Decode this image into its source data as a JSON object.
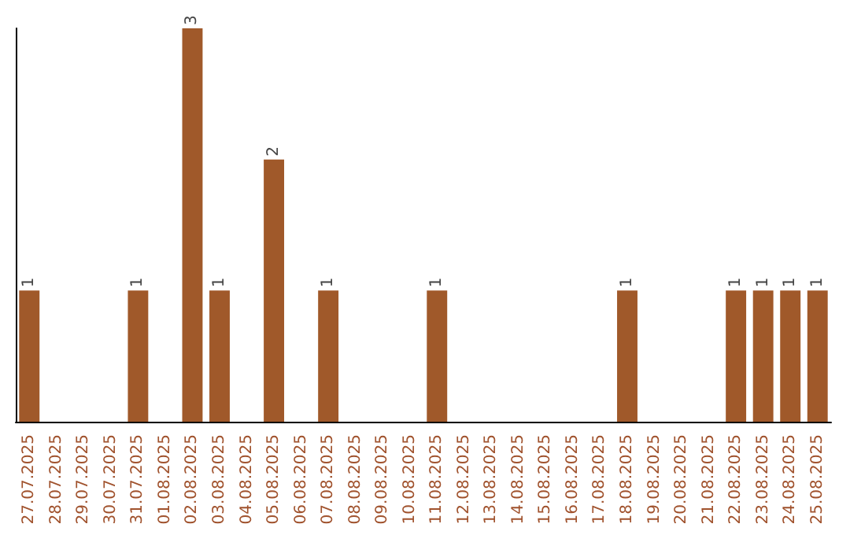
{
  "chart_data": {
    "type": "bar",
    "categories": [
      "27.07.2025",
      "28.07.2025",
      "29.07.2025",
      "30.07.2025",
      "31.07.2025",
      "01.08.2025",
      "02.08.2025",
      "03.08.2025",
      "04.08.2025",
      "05.08.2025",
      "06.08.2025",
      "07.08.2025",
      "08.08.2025",
      "09.08.2025",
      "10.08.2025",
      "11.08.2025",
      "12.08.2025",
      "13.08.2025",
      "14.08.2025",
      "15.08.2025",
      "16.08.2025",
      "17.08.2025",
      "18.08.2025",
      "19.08.2025",
      "20.08.2025",
      "21.08.2025",
      "22.08.2025",
      "23.08.2025",
      "24.08.2025",
      "25.08.2025"
    ],
    "values": [
      1,
      0,
      0,
      0,
      1,
      0,
      3,
      1,
      0,
      2,
      0,
      1,
      0,
      0,
      0,
      1,
      0,
      0,
      0,
      0,
      0,
      0,
      1,
      0,
      0,
      0,
      1,
      1,
      1,
      1
    ],
    "value_labels": [
      "1",
      null,
      null,
      null,
      "1",
      null,
      "3",
      "1",
      null,
      "2",
      null,
      "1",
      null,
      null,
      null,
      "1",
      null,
      null,
      null,
      null,
      null,
      null,
      "1",
      null,
      null,
      null,
      "1",
      "1",
      "1",
      "1"
    ],
    "color": "#a0592a",
    "grid": false,
    "tick_labels": "x"
  }
}
